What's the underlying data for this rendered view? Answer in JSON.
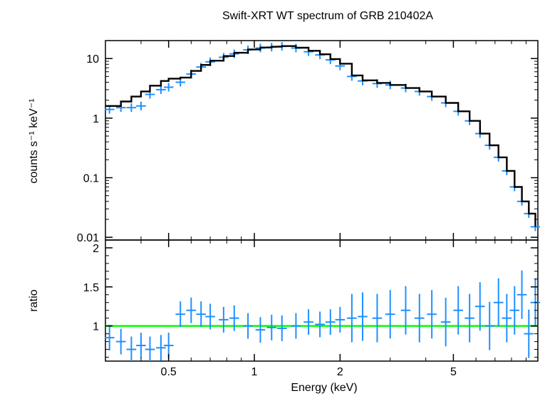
{
  "chart_data": [
    {
      "type": "scatter",
      "title": "Swift-XRT WT spectrum of GRB 210402A",
      "xlabel": "",
      "ylabel": "counts s⁻¹ keV⁻¹",
      "xscale": "log",
      "yscale": "log",
      "xlim": [
        0.3,
        9.9
      ],
      "ylim": [
        0.009,
        20
      ],
      "yticks": [
        0.01,
        0.1,
        1,
        10
      ],
      "ytick_labels": [
        "0.01",
        "0.1",
        "1",
        "10"
      ],
      "data_color": "#1e90ff",
      "model_color": "#000000",
      "series": [
        {
          "style": "crosses",
          "x": [
            0.31,
            0.34,
            0.37,
            0.4,
            0.43,
            0.47,
            0.5,
            0.55,
            0.6,
            0.65,
            0.7,
            0.78,
            0.85,
            0.95,
            1.05,
            1.15,
            1.25,
            1.4,
            1.55,
            1.7,
            1.85,
            2.0,
            2.2,
            2.4,
            2.7,
            3.0,
            3.4,
            3.8,
            4.2,
            4.7,
            5.2,
            5.7,
            6.2,
            6.7,
            7.2,
            7.7,
            8.2,
            8.7,
            9.2,
            9.7
          ],
          "y": [
            1.4,
            1.5,
            1.5,
            1.6,
            2.5,
            3.0,
            3.3,
            4.0,
            5.5,
            7.2,
            8.8,
            10.5,
            12.0,
            14.0,
            15.0,
            15.5,
            16.0,
            15.0,
            13.0,
            11.5,
            9.5,
            7.5,
            5.0,
            4.2,
            3.8,
            3.6,
            3.2,
            2.8,
            2.3,
            1.8,
            1.3,
            0.9,
            0.55,
            0.35,
            0.22,
            0.13,
            0.07,
            0.04,
            0.025,
            0.015
          ]
        },
        {
          "style": "line",
          "x": [
            0.31,
            0.34,
            0.37,
            0.4,
            0.43,
            0.47,
            0.5,
            0.55,
            0.6,
            0.65,
            0.7,
            0.78,
            0.85,
            0.95,
            1.05,
            1.15,
            1.25,
            1.4,
            1.55,
            1.7,
            1.85,
            2.0,
            2.2,
            2.4,
            2.7,
            3.0,
            3.4,
            3.8,
            4.2,
            4.7,
            5.2,
            5.7,
            6.2,
            6.7,
            7.2,
            7.7,
            8.2,
            8.7,
            9.2,
            9.7
          ],
          "y": [
            1.6,
            1.9,
            2.3,
            2.8,
            3.5,
            4.2,
            4.6,
            4.8,
            6.2,
            7.8,
            9.2,
            11.0,
            12.5,
            14.2,
            15.3,
            15.8,
            16.2,
            15.2,
            13.5,
            11.8,
            9.8,
            8.2,
            5.2,
            4.3,
            3.9,
            3.6,
            3.2,
            2.8,
            2.3,
            1.8,
            1.3,
            0.9,
            0.55,
            0.35,
            0.22,
            0.13,
            0.07,
            0.04,
            0.025,
            0.015
          ]
        }
      ]
    },
    {
      "type": "scatter",
      "xlabel": "Energy (keV)",
      "ylabel": "ratio",
      "xscale": "log",
      "xlim": [
        0.3,
        9.9
      ],
      "ylim": [
        0.55,
        2.1
      ],
      "xticks": [
        0.5,
        1,
        2,
        5
      ],
      "xtick_labels": [
        "0.5",
        "1",
        "2",
        "5"
      ],
      "yticks": [
        1,
        1.5,
        2
      ],
      "ytick_labels": [
        "1",
        "1.5",
        "2"
      ],
      "reference_line": 1,
      "reference_color": "#00ff00",
      "series": [
        {
          "style": "crosses",
          "x": [
            0.31,
            0.34,
            0.37,
            0.4,
            0.43,
            0.47,
            0.5,
            0.55,
            0.6,
            0.65,
            0.7,
            0.78,
            0.85,
            0.95,
            1.05,
            1.15,
            1.25,
            1.4,
            1.55,
            1.7,
            1.85,
            2.0,
            2.2,
            2.4,
            2.7,
            3.0,
            3.4,
            3.8,
            4.2,
            4.7,
            5.2,
            5.7,
            6.2,
            6.7,
            7.2,
            7.7,
            8.2,
            8.7,
            9.2,
            9.7
          ],
          "y": [
            0.85,
            0.8,
            0.7,
            0.75,
            0.7,
            0.72,
            0.75,
            1.15,
            1.2,
            1.15,
            1.12,
            1.08,
            1.1,
            1.0,
            0.95,
            0.98,
            0.97,
            1.0,
            1.05,
            1.02,
            1.05,
            1.08,
            1.1,
            1.12,
            1.1,
            1.15,
            1.2,
            1.1,
            1.15,
            1.05,
            1.2,
            1.1,
            1.25,
            1.0,
            1.3,
            1.1,
            1.2,
            1.4,
            0.9,
            1.3
          ]
        }
      ]
    }
  ]
}
